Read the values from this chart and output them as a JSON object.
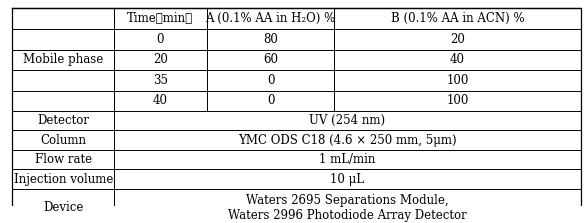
{
  "header_row": [
    "Time（min）",
    "A (0.1% AA in H₂O) %",
    "B (0.1% AA in ACN) %"
  ],
  "mobile_phase_data": [
    [
      "0",
      "80",
      "20"
    ],
    [
      "20",
      "60",
      "40"
    ],
    [
      "35",
      "0",
      "100"
    ],
    [
      "40",
      "0",
      "100"
    ]
  ],
  "rows": [
    [
      "Detector",
      "UV (254 nm)"
    ],
    [
      "Column",
      "YMC ODS C18 (4.6 × 250 mm, 5μm)"
    ],
    [
      "Flow rate",
      "1 mL/min"
    ],
    [
      "Injection volume",
      "10 μL"
    ],
    [
      "Device",
      "Waters 2695 Separations Module,\nWaters 2996 Photodiode Array Detector"
    ]
  ],
  "left_label": "Mobile phase",
  "font_size": 8.5,
  "bg_color": "#ffffff",
  "border_color": "#000000"
}
